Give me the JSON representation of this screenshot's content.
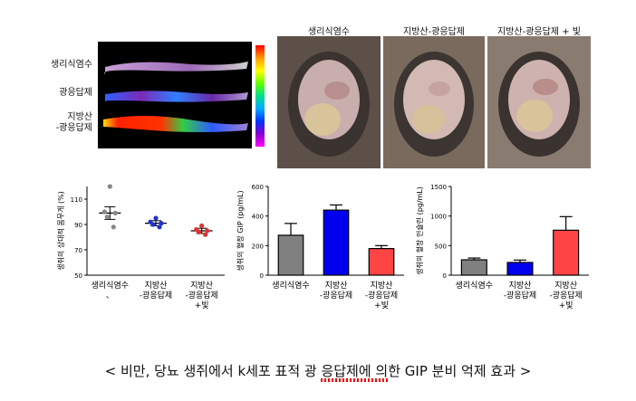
{
  "imaging": {
    "rows": [
      "생리식염수",
      "광응답제",
      "지방산\n-광응답제"
    ],
    "colorbar": [
      "#ff0000",
      "#ff9900",
      "#ffff00",
      "#66ff00",
      "#00dd88",
      "#00aaff",
      "#0033ff",
      "#8800cc",
      "#ff00ff"
    ]
  },
  "photos": {
    "titles": [
      "생리식염수",
      "지방산-광응답제",
      "지방산-광응답제 + 빛"
    ]
  },
  "caption": {
    "text": "< 비만, 당뇨 생쥐에서 k세포 표적 광 응답제에 의한 GIP 분비 억제 효과 >"
  },
  "chart_data": [
    {
      "type": "scatter",
      "title": "",
      "ylabel": "생쥐의 상대적 몸무게 (%)",
      "ylim": [
        50,
        120
      ],
      "yticks": [
        50,
        70,
        90,
        110
      ],
      "categories": [
        "생리식염수\n、",
        "지방산\n-광응답제",
        "지방산\n-광응답제\n+빛"
      ],
      "series": [
        {
          "values": [
            99,
            91,
            85
          ],
          "color": "#222222"
        },
        {
          "points": [
            [
              120,
              100,
              99,
              96,
              88
            ],
            [
              95,
              92,
              91,
              90,
              88
            ],
            [
              89,
              86,
              85,
              84,
              82
            ]
          ]
        }
      ],
      "point_colors": [
        "#888888",
        "#2233cc",
        "#dd3333"
      ]
    },
    {
      "type": "bar",
      "title": "",
      "ylabel": "생쥐의 혈장 GIP (pg/mL)",
      "ylim": [
        0,
        600
      ],
      "yticks": [
        0,
        200,
        400,
        600
      ],
      "categories": [
        "생리식염수",
        "지방산\n-광응답제",
        "지방산\n-광응답제\n+빛"
      ],
      "values": [
        270,
        440,
        180
      ],
      "errors": [
        80,
        35,
        20
      ],
      "colors": [
        "#808080",
        "#0000ee",
        "#ff4444"
      ]
    },
    {
      "type": "bar",
      "title": "",
      "ylabel": "생쥐의 혈장 인슐린 (pg/mL)",
      "ylim": [
        0,
        1500
      ],
      "yticks": [
        0,
        500,
        1000,
        1500
      ],
      "categories": [
        "생리식염수",
        "지방산\n-광응답제",
        "지방산\n-광응답제\n+빛"
      ],
      "values": [
        260,
        215,
        760
      ],
      "errors": [
        30,
        40,
        230
      ],
      "colors": [
        "#808080",
        "#0000ee",
        "#ff4444"
      ]
    }
  ]
}
